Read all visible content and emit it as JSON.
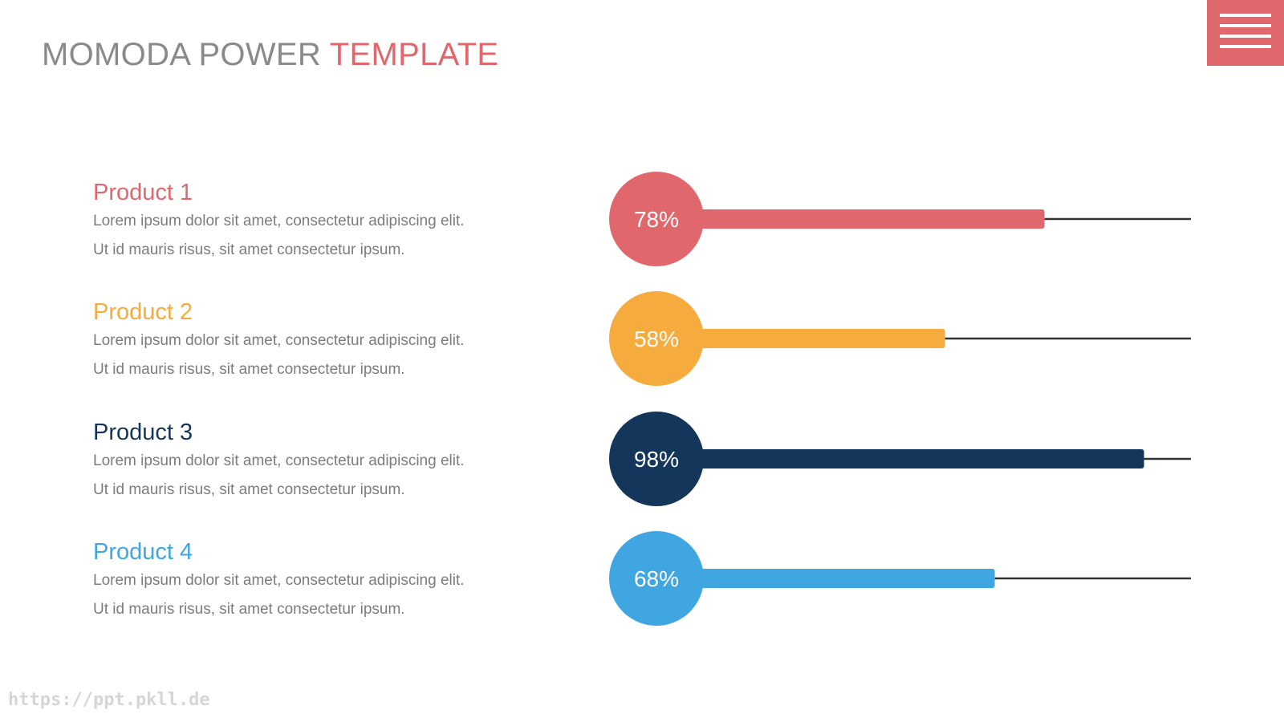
{
  "title": {
    "part1": "MOMODA POWER",
    "part2": "TEMPLATE"
  },
  "menu_icon": "hamburger-menu-icon",
  "colors": {
    "title_gray": "#8a8a8a",
    "accent_red": "#e0686c",
    "track_line": "#333333"
  },
  "products": [
    {
      "name": "Product 1",
      "line1": "Lorem ipsum dolor sit amet, consectetur adipiscing elit.",
      "line2": "Ut id mauris risus, sit amet consectetur ipsum.",
      "color": "#e0686c"
    },
    {
      "name": "Product 2",
      "line1": "Lorem ipsum dolor sit amet, consectetur adipiscing elit.",
      "line2": "Ut id mauris risus, sit amet consectetur ipsum.",
      "color": "#f5ab3e"
    },
    {
      "name": "Product 3",
      "line1": "Lorem ipsum dolor sit amet, consectetur adipiscing elit.",
      "line2": "Ut id mauris risus, sit amet consectetur ipsum.",
      "color": "#14365a"
    },
    {
      "name": "Product 4",
      "line1": "Lorem ipsum dolor sit amet, consectetur adipiscing elit.",
      "line2": "Ut id mauris risus, sit amet consectetur ipsum.",
      "color": "#40a6e2"
    }
  ],
  "chart_data": {
    "type": "bar",
    "categories": [
      "Product 1",
      "Product 2",
      "Product 3",
      "Product 4"
    ],
    "values": [
      78,
      58,
      98,
      68
    ],
    "labels": [
      "78%",
      "58%",
      "98%",
      "68%"
    ],
    "colors": [
      "#e0686c",
      "#f5ab3e",
      "#14365a",
      "#40a6e2"
    ],
    "xlim": [
      0,
      100
    ],
    "orientation": "horizontal",
    "grid": false,
    "legend": "none"
  },
  "watermark": "https://ppt.pkll.de"
}
